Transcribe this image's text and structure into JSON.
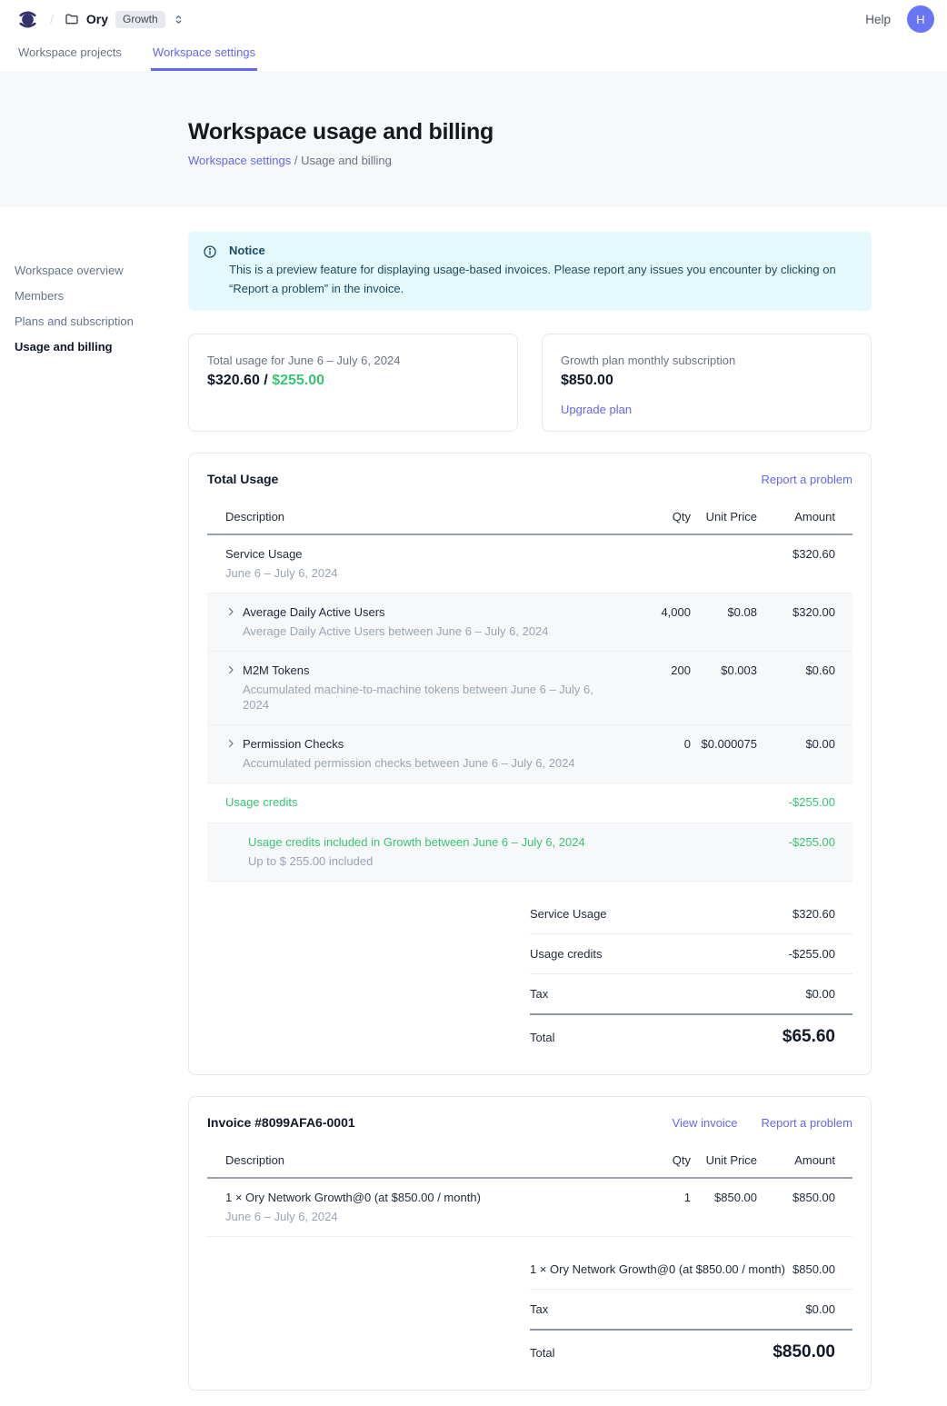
{
  "colors": {
    "accent": "#6366f1",
    "positive_green": "#36c573",
    "notice_bg": "#e4f9fc",
    "notice_text": "#1d4a5f",
    "brand_logo": "#33306b",
    "avatar_bg": "#6875f5"
  },
  "header": {
    "breadcrumb_separator": "/",
    "workspace_name": "Ory",
    "plan_badge": "Growth",
    "help_label": "Help",
    "avatar_initial": "H"
  },
  "tabs": [
    {
      "label": "Workspace projects",
      "active": false
    },
    {
      "label": "Workspace settings",
      "active": true
    }
  ],
  "hero": {
    "title": "Workspace usage and billing",
    "breadcrumb_link": "Workspace settings",
    "breadcrumb_separator": "/",
    "breadcrumb_current": "Usage and billing"
  },
  "sidebar": {
    "items": [
      {
        "label": "Workspace overview",
        "active": false
      },
      {
        "label": "Members",
        "active": false
      },
      {
        "label": "Plans and subscription",
        "active": false
      },
      {
        "label": "Usage and billing",
        "active": true
      }
    ]
  },
  "notice": {
    "title": "Notice",
    "body": "This is a preview feature for displaying usage-based invoices. Please report any issues you encounter by clicking on “Report a problem” in the invoice."
  },
  "summary_cards": {
    "usage": {
      "label": "Total usage for June 6 – July 6, 2024",
      "used": "$320.60",
      "separator": " / ",
      "included": "$255.00"
    },
    "subscription": {
      "label": "Growth plan monthly subscription",
      "amount": "$850.00",
      "action": "Upgrade plan"
    }
  },
  "invoices": [
    {
      "id": "total-usage",
      "title": "Total Usage",
      "links": [
        {
          "label": "Report a problem"
        }
      ],
      "columns": [
        "Description",
        "Qty",
        "Unit Price",
        "Amount"
      ],
      "rows": [
        {
          "title": "Service Usage",
          "subtitle": "June 6 – July 6, 2024",
          "qty": "",
          "unit": "",
          "amount": "$320.60",
          "chevron": false,
          "striped": false,
          "green": false,
          "indent": false
        },
        {
          "title": "Average Daily Active Users",
          "subtitle": "Average Daily Active Users between June 6 – July 6, 2024",
          "qty": "4,000",
          "unit": "$0.08",
          "amount": "$320.00",
          "chevron": true,
          "striped": true,
          "green": false,
          "indent": false
        },
        {
          "title": "M2M Tokens",
          "subtitle": "Accumulated machine-to-machine tokens between June 6 – July 6, 2024",
          "qty": "200",
          "unit": "$0.003",
          "amount": "$0.60",
          "chevron": true,
          "striped": true,
          "green": false,
          "indent": false
        },
        {
          "title": "Permission Checks",
          "subtitle": "Accumulated permission checks between June 6 – July 6, 2024",
          "qty": "0",
          "unit": "$0.000075",
          "amount": "$0.00",
          "chevron": true,
          "striped": true,
          "green": false,
          "indent": false
        },
        {
          "title": "Usage credits",
          "subtitle": "",
          "qty": "",
          "unit": "",
          "amount": "-$255.00",
          "chevron": false,
          "striped": false,
          "green": true,
          "indent": false
        },
        {
          "title": "Usage credits included in Growth between June 6 – July 6, 2024",
          "subtitle": "Up to $ 255.00 included",
          "qty": "",
          "unit": "",
          "amount": "-$255.00",
          "chevron": false,
          "striped": true,
          "green": true,
          "indent": true
        }
      ],
      "summary": [
        {
          "label": "Service Usage",
          "value": "$320.60"
        },
        {
          "label": "Usage credits",
          "value": "-$255.00"
        },
        {
          "label": "Tax",
          "value": "$0.00"
        }
      ],
      "total": {
        "label": "Total",
        "value": "$65.60"
      }
    },
    {
      "id": "invoice-8099afa6-0001",
      "title": "Invoice #8099AFA6-0001",
      "links": [
        {
          "label": "View invoice"
        },
        {
          "label": "Report a problem"
        }
      ],
      "columns": [
        "Description",
        "Qty",
        "Unit Price",
        "Amount"
      ],
      "rows": [
        {
          "title": "1 × Ory Network Growth@0 (at $850.00 / month)",
          "subtitle": "June 6 – July 6, 2024",
          "qty": "1",
          "unit": "$850.00",
          "amount": "$850.00",
          "chevron": false,
          "striped": false,
          "green": false,
          "indent": false
        }
      ],
      "summary": [
        {
          "label": "1 × Ory Network Growth@0 (at $850.00 / month)",
          "value": "$850.00"
        },
        {
          "label": "Tax",
          "value": "$0.00"
        }
      ],
      "total": {
        "label": "Total",
        "value": "$850.00"
      }
    }
  ]
}
